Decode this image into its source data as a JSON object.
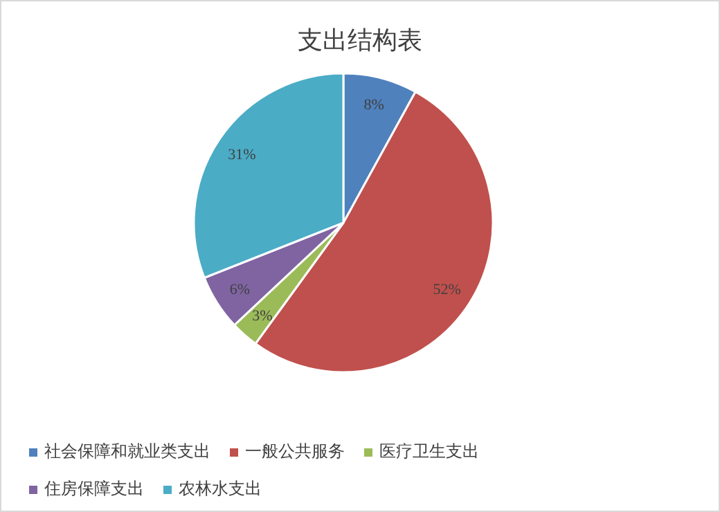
{
  "chart_data": {
    "type": "pie",
    "title": "支出结构表",
    "categories": [
      "社会保障和就业类支出",
      "一般公共服务",
      "医疗卫生支出",
      "住房保障支出",
      "农林水支出"
    ],
    "values": [
      8,
      52,
      3,
      6,
      31
    ],
    "value_labels": [
      "8%",
      "52%",
      "3%",
      "6%",
      "31%"
    ],
    "colors": [
      "#4f81bd",
      "#c0504d",
      "#9bbb59",
      "#8064a2",
      "#4bacc6"
    ],
    "legend": "bottom"
  }
}
